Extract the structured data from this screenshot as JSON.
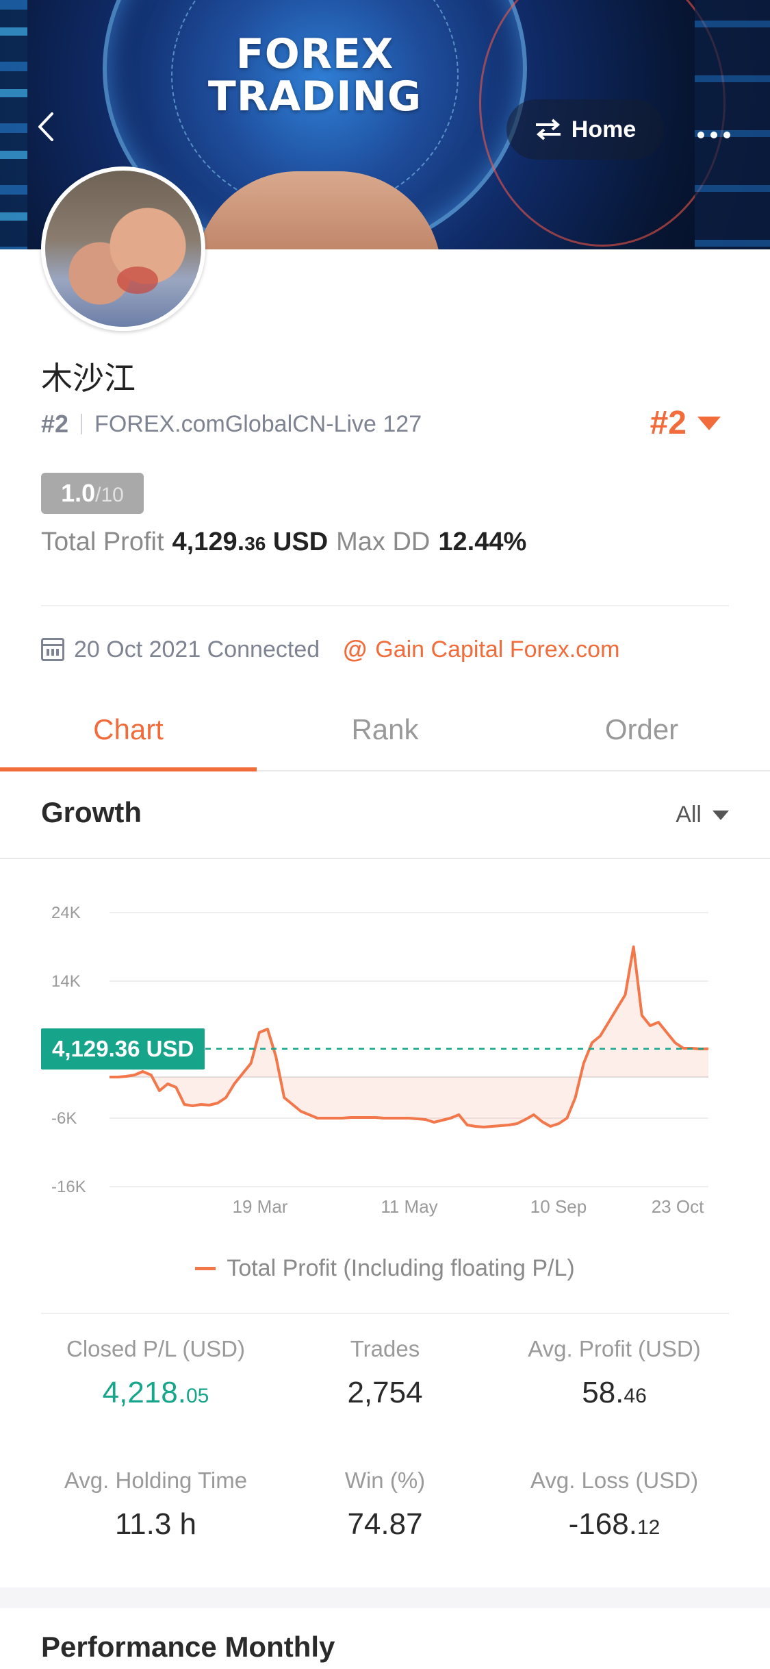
{
  "banner": {
    "title_line1": "FOREX",
    "title_line2": "TRADING"
  },
  "header": {
    "back_icon": "chevron-left-icon",
    "home_label": "Home",
    "home_icon": "swap-arrows-icon",
    "more_icon": "more-horizontal-icon"
  },
  "profile": {
    "name": "木沙江",
    "rank": "#2",
    "server": "FOREX.comGlobalCN-Live 127",
    "rank_right": "#2",
    "score": "1.0",
    "score_den": "/10",
    "total_profit_label": "Total Profit",
    "total_profit_main": "4,129.",
    "total_profit_dec": "36",
    "total_profit_unit": "USD",
    "max_dd_label": "Max DD",
    "max_dd_value": "12.44%",
    "connected_text": "20 Oct 2021 Connected",
    "broker": "Gain Capital Forex.com",
    "accent_color": "#f26b3a"
  },
  "tabs": [
    {
      "label": "Chart",
      "active": true
    },
    {
      "label": "Rank",
      "active": false
    },
    {
      "label": "Order",
      "active": false
    }
  ],
  "growth": {
    "title": "Growth",
    "range": "All"
  },
  "chart_data": {
    "type": "line",
    "y_ticks": [
      "24K",
      "14K",
      "-6K",
      "-16K"
    ],
    "x_ticks": [
      "19 Mar",
      "11 May",
      "10 Sep",
      "23 Oct"
    ],
    "ylim": [
      -16000,
      24000
    ],
    "current_label": "4,129.36 USD",
    "current_value": 4129.36,
    "legend": "Total Profit (Including floating P/L)",
    "line_color": "#f2774a",
    "reference_color": "#16a58a",
    "series": [
      {
        "values": [
          0,
          0,
          100,
          300,
          800,
          300,
          -2000,
          -1000,
          -1500,
          -4000,
          -4200,
          -4000,
          -4100,
          -3800,
          -3000,
          -1000,
          500,
          2000,
          6500,
          7000,
          3000,
          -3000,
          -4000,
          -5000,
          -5500,
          -6000,
          -6000,
          -6000,
          -6000,
          -5900,
          -5900,
          -5900,
          -5900,
          -6000,
          -6000,
          -6000,
          -6000,
          -6100,
          -6200,
          -6600,
          -6300,
          -6000,
          -5500,
          -7000,
          -7200,
          -7300,
          -7200,
          -7100,
          -7000,
          -6800,
          -6200,
          -5500,
          -6500,
          -7200,
          -6800,
          -6000,
          -3000,
          2000,
          5000,
          6000,
          8000,
          10000,
          12000,
          19000,
          9000,
          7500,
          8000,
          6500,
          5000,
          4200,
          4200,
          4100,
          4129.36
        ]
      }
    ]
  },
  "stats": [
    {
      "label": "Closed P/L (USD)",
      "main": "4,218.",
      "dec": "05"
    },
    {
      "label": "Trades",
      "main": "2,754",
      "dec": ""
    },
    {
      "label": "Avg. Profit (USD)",
      "main": "58.",
      "dec": "46"
    },
    {
      "label": "Avg. Holding Time",
      "main": "11.3 h",
      "dec": ""
    },
    {
      "label": "Win (%)",
      "main": "74.87",
      "dec": ""
    },
    {
      "label": "Avg. Loss (USD)",
      "main": "-168.",
      "dec": "12"
    }
  ],
  "performance": {
    "title": "Performance Monthly"
  }
}
